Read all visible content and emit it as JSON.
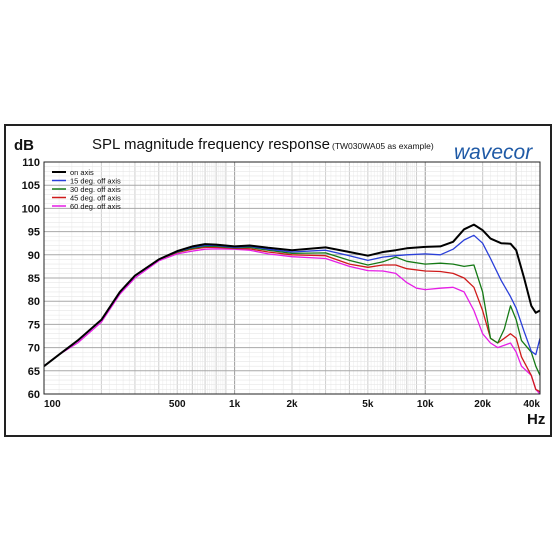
{
  "chart_data": {
    "type": "line",
    "title": "SPL magnitude frequency response",
    "subtitle": "(TW030WA05 as example)",
    "xlabel": "Hz",
    "ylabel": "dB",
    "x_scale": "log",
    "xlim": [
      100,
      40000
    ],
    "ylim": [
      60,
      110
    ],
    "grid": true,
    "legend_position": "top-left",
    "y_ticks": [
      "60",
      "65",
      "70",
      "75",
      "80",
      "85",
      "90",
      "95",
      "100",
      "105",
      "110"
    ],
    "x_ticks": [
      {
        "value": 100,
        "label": "100"
      },
      {
        "value": 500,
        "label": "500"
      },
      {
        "value": 1000,
        "label": "1k"
      },
      {
        "value": 2000,
        "label": "2k"
      },
      {
        "value": 5000,
        "label": "5k"
      },
      {
        "value": 10000,
        "label": "10k"
      },
      {
        "value": 20000,
        "label": "20k"
      },
      {
        "value": 40000,
        "label": "40k"
      }
    ],
    "logo": {
      "text": "wavecor",
      "color": "#1f5aa6"
    },
    "series": [
      {
        "name": "on axis",
        "color": "#000000",
        "points": [
          [
            100,
            66
          ],
          [
            120,
            68.5
          ],
          [
            150,
            71.5
          ],
          [
            200,
            76
          ],
          [
            250,
            82
          ],
          [
            300,
            85.5
          ],
          [
            400,
            89
          ],
          [
            500,
            90.8
          ],
          [
            600,
            91.8
          ],
          [
            700,
            92.3
          ],
          [
            800,
            92.2
          ],
          [
            1000,
            91.8
          ],
          [
            1200,
            92
          ],
          [
            1500,
            91.5
          ],
          [
            2000,
            91
          ],
          [
            3000,
            91.6
          ],
          [
            4000,
            90.6
          ],
          [
            5000,
            89.8
          ],
          [
            6000,
            90.6
          ],
          [
            7000,
            91
          ],
          [
            8000,
            91.4
          ],
          [
            10000,
            91.7
          ],
          [
            12000,
            91.8
          ],
          [
            14000,
            92.8
          ],
          [
            16000,
            95.5
          ],
          [
            18000,
            96.5
          ],
          [
            20000,
            95.3
          ],
          [
            22000,
            93.5
          ],
          [
            25000,
            92.5
          ],
          [
            28000,
            92.4
          ],
          [
            30000,
            91
          ],
          [
            33000,
            85
          ],
          [
            36000,
            79
          ],
          [
            38000,
            77.5
          ],
          [
            40000,
            78
          ]
        ]
      },
      {
        "name": "15 deg. off axis",
        "color": "#2a3fd9",
        "points": [
          [
            100,
            66
          ],
          [
            120,
            68.5
          ],
          [
            150,
            71.5
          ],
          [
            200,
            76
          ],
          [
            250,
            82
          ],
          [
            300,
            85.5
          ],
          [
            400,
            89
          ],
          [
            500,
            90.7
          ],
          [
            600,
            91.6
          ],
          [
            700,
            92
          ],
          [
            800,
            92
          ],
          [
            1000,
            91.6
          ],
          [
            1200,
            91.8
          ],
          [
            1500,
            91.2
          ],
          [
            2000,
            90.6
          ],
          [
            3000,
            91
          ],
          [
            4000,
            89.8
          ],
          [
            5000,
            88.8
          ],
          [
            6000,
            89.5
          ],
          [
            7000,
            89.8
          ],
          [
            8000,
            90
          ],
          [
            10000,
            90.2
          ],
          [
            12000,
            90
          ],
          [
            14000,
            91.2
          ],
          [
            16000,
            93.2
          ],
          [
            18000,
            94.2
          ],
          [
            20000,
            92.5
          ],
          [
            22000,
            89.2
          ],
          [
            25000,
            84.5
          ],
          [
            28000,
            81
          ],
          [
            30000,
            78.5
          ],
          [
            33000,
            73.5
          ],
          [
            36000,
            69.2
          ],
          [
            38000,
            68.5
          ],
          [
            40000,
            72
          ]
        ]
      },
      {
        "name": "30 deg. off axis",
        "color": "#167a16",
        "points": [
          [
            100,
            66
          ],
          [
            120,
            68.5
          ],
          [
            150,
            71.5
          ],
          [
            200,
            76
          ],
          [
            250,
            82
          ],
          [
            300,
            85.5
          ],
          [
            400,
            89
          ],
          [
            500,
            90.6
          ],
          [
            600,
            91.4
          ],
          [
            700,
            91.8
          ],
          [
            800,
            91.8
          ],
          [
            1000,
            91.5
          ],
          [
            1200,
            91.6
          ],
          [
            1500,
            91
          ],
          [
            2000,
            90.3
          ],
          [
            3000,
            90.4
          ],
          [
            4000,
            88.8
          ],
          [
            5000,
            87.8
          ],
          [
            6000,
            88.5
          ],
          [
            7000,
            89.5
          ],
          [
            8000,
            88.6
          ],
          [
            10000,
            88
          ],
          [
            12000,
            88.2
          ],
          [
            14000,
            88
          ],
          [
            16000,
            87.5
          ],
          [
            18000,
            87.8
          ],
          [
            20000,
            82
          ],
          [
            22000,
            72
          ],
          [
            24000,
            71
          ],
          [
            26000,
            74
          ],
          [
            28000,
            79
          ],
          [
            30000,
            76
          ],
          [
            32000,
            71.5
          ],
          [
            36000,
            69
          ],
          [
            38000,
            66
          ],
          [
            40000,
            64
          ]
        ]
      },
      {
        "name": "45 deg. off axis",
        "color": "#cf1b1b",
        "points": [
          [
            100,
            66
          ],
          [
            120,
            68.5
          ],
          [
            150,
            71.5
          ],
          [
            200,
            76
          ],
          [
            250,
            82
          ],
          [
            300,
            85.5
          ],
          [
            400,
            89
          ],
          [
            500,
            90.5
          ],
          [
            600,
            91.2
          ],
          [
            700,
            91.6
          ],
          [
            800,
            91.6
          ],
          [
            1000,
            91.4
          ],
          [
            1200,
            91.3
          ],
          [
            1500,
            90.6
          ],
          [
            2000,
            90
          ],
          [
            3000,
            89.8
          ],
          [
            4000,
            88
          ],
          [
            5000,
            87.3
          ],
          [
            6000,
            87.8
          ],
          [
            7000,
            87.8
          ],
          [
            8000,
            87
          ],
          [
            10000,
            86.5
          ],
          [
            12000,
            86.4
          ],
          [
            14000,
            86
          ],
          [
            16000,
            85
          ],
          [
            18000,
            83
          ],
          [
            20000,
            78
          ],
          [
            22000,
            72
          ],
          [
            24000,
            71
          ],
          [
            26000,
            72
          ],
          [
            28000,
            73
          ],
          [
            30000,
            72
          ],
          [
            32000,
            68
          ],
          [
            36000,
            64
          ],
          [
            38000,
            61
          ],
          [
            40000,
            60.5
          ]
        ]
      },
      {
        "name": "60 deg. off axis",
        "color": "#e61ee6",
        "points": [
          [
            100,
            66
          ],
          [
            120,
            68.5
          ],
          [
            150,
            71
          ],
          [
            200,
            75.5
          ],
          [
            250,
            81.5
          ],
          [
            300,
            85
          ],
          [
            400,
            88.7
          ],
          [
            500,
            90.2
          ],
          [
            600,
            90.8
          ],
          [
            700,
            91.2
          ],
          [
            800,
            91.3
          ],
          [
            1000,
            91.2
          ],
          [
            1200,
            91
          ],
          [
            1500,
            90.2
          ],
          [
            2000,
            89.6
          ],
          [
            3000,
            89.2
          ],
          [
            4000,
            87.5
          ],
          [
            5000,
            86.6
          ],
          [
            6000,
            86.5
          ],
          [
            7000,
            86
          ],
          [
            8000,
            84
          ],
          [
            9000,
            82.8
          ],
          [
            10000,
            82.5
          ],
          [
            12000,
            82.8
          ],
          [
            14000,
            83
          ],
          [
            16000,
            82
          ],
          [
            18000,
            78
          ],
          [
            20000,
            73
          ],
          [
            22000,
            71
          ],
          [
            24000,
            70
          ],
          [
            26000,
            70.5
          ],
          [
            28000,
            71
          ],
          [
            30000,
            69
          ],
          [
            32000,
            66
          ],
          [
            36000,
            64
          ],
          [
            38000,
            61
          ],
          [
            40000,
            60
          ]
        ]
      }
    ]
  }
}
